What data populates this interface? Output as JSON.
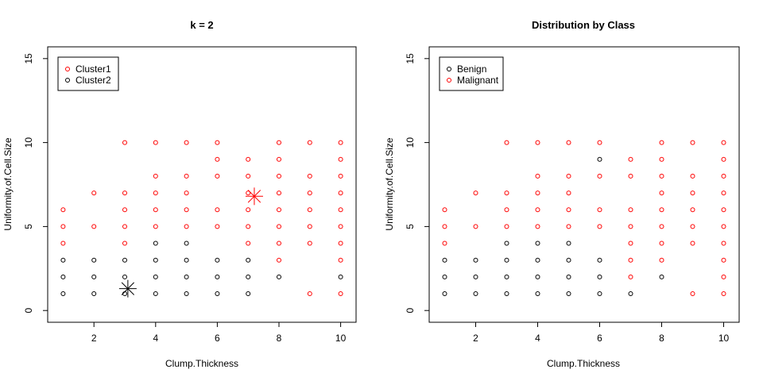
{
  "chart_data": [
    {
      "type": "scatter",
      "title": "k = 2",
      "xlabel": "Clump.Thickness",
      "ylabel": "Uniformity.of.Cell.Size",
      "xlim": [
        0.5,
        10.5
      ],
      "ylim": [
        -0.7,
        15.7
      ],
      "x_ticks": [
        2,
        4,
        6,
        8,
        10
      ],
      "y_ticks": [
        0,
        5,
        10,
        15
      ],
      "grid": false,
      "legend_position": "top-left",
      "series": [
        {
          "name": "Cluster1",
          "color": "#ff0000",
          "marker": "circle",
          "points": [
            [
              1,
              4
            ],
            [
              1,
              5
            ],
            [
              1,
              6
            ],
            [
              2,
              5
            ],
            [
              2,
              7
            ],
            [
              3,
              4
            ],
            [
              3,
              5
            ],
            [
              3,
              6
            ],
            [
              3,
              7
            ],
            [
              3,
              10
            ],
            [
              4,
              5
            ],
            [
              4,
              6
            ],
            [
              4,
              7
            ],
            [
              4,
              8
            ],
            [
              4,
              10
            ],
            [
              5,
              5
            ],
            [
              5,
              6
            ],
            [
              5,
              7
            ],
            [
              5,
              8
            ],
            [
              5,
              10
            ],
            [
              6,
              5
            ],
            [
              6,
              6
            ],
            [
              6,
              8
            ],
            [
              6,
              9
            ],
            [
              6,
              10
            ],
            [
              7,
              4
            ],
            [
              7,
              5
            ],
            [
              7,
              6
            ],
            [
              7,
              7
            ],
            [
              7,
              8
            ],
            [
              7,
              9
            ],
            [
              8,
              3
            ],
            [
              8,
              4
            ],
            [
              8,
              5
            ],
            [
              8,
              6
            ],
            [
              8,
              7
            ],
            [
              8,
              8
            ],
            [
              8,
              9
            ],
            [
              8,
              10
            ],
            [
              9,
              1
            ],
            [
              9,
              4
            ],
            [
              9,
              5
            ],
            [
              9,
              6
            ],
            [
              9,
              7
            ],
            [
              9,
              8
            ],
            [
              9,
              10
            ],
            [
              10,
              1
            ],
            [
              10,
              3
            ],
            [
              10,
              4
            ],
            [
              10,
              5
            ],
            [
              10,
              6
            ],
            [
              10,
              7
            ],
            [
              10,
              8
            ],
            [
              10,
              9
            ],
            [
              10,
              10
            ]
          ]
        },
        {
          "name": "Cluster2",
          "color": "#000000",
          "marker": "circle",
          "points": [
            [
              1,
              1
            ],
            [
              1,
              2
            ],
            [
              1,
              3
            ],
            [
              2,
              1
            ],
            [
              2,
              2
            ],
            [
              2,
              3
            ],
            [
              3,
              1
            ],
            [
              3,
              2
            ],
            [
              3,
              3
            ],
            [
              4,
              1
            ],
            [
              4,
              2
            ],
            [
              4,
              3
            ],
            [
              4,
              4
            ],
            [
              5,
              1
            ],
            [
              5,
              2
            ],
            [
              5,
              3
            ],
            [
              5,
              4
            ],
            [
              6,
              1
            ],
            [
              6,
              2
            ],
            [
              6,
              3
            ],
            [
              7,
              1
            ],
            [
              7,
              2
            ],
            [
              7,
              3
            ],
            [
              8,
              2
            ],
            [
              10,
              2
            ]
          ]
        }
      ],
      "centers": [
        {
          "color": "#ff0000",
          "x": 7.2,
          "y": 6.8,
          "marker": "asterisk"
        },
        {
          "color": "#000000",
          "x": 3.1,
          "y": 1.3,
          "marker": "asterisk"
        }
      ]
    },
    {
      "type": "scatter",
      "title": "Distribution by Class",
      "xlabel": "Clump.Thickness",
      "ylabel": "Uniformity.of.Cell.Size",
      "xlim": [
        0.5,
        10.5
      ],
      "ylim": [
        -0.7,
        15.7
      ],
      "x_ticks": [
        2,
        4,
        6,
        8,
        10
      ],
      "y_ticks": [
        0,
        5,
        10,
        15
      ],
      "grid": false,
      "legend_position": "top-left",
      "series": [
        {
          "name": "Benign",
          "color": "#000000",
          "marker": "circle",
          "points": [
            [
              1,
              1
            ],
            [
              1,
              2
            ],
            [
              1,
              3
            ],
            [
              2,
              1
            ],
            [
              2,
              2
            ],
            [
              2,
              3
            ],
            [
              3,
              1
            ],
            [
              3,
              2
            ],
            [
              3,
              3
            ],
            [
              3,
              4
            ],
            [
              4,
              1
            ],
            [
              4,
              2
            ],
            [
              4,
              3
            ],
            [
              4,
              4
            ],
            [
              5,
              1
            ],
            [
              5,
              2
            ],
            [
              5,
              3
            ],
            [
              5,
              4
            ],
            [
              6,
              1
            ],
            [
              6,
              2
            ],
            [
              6,
              3
            ],
            [
              6,
              9
            ],
            [
              7,
              1
            ],
            [
              8,
              2
            ]
          ]
        },
        {
          "name": "Malignant",
          "color": "#ff0000",
          "marker": "circle",
          "points": [
            [
              1,
              4
            ],
            [
              1,
              5
            ],
            [
              1,
              6
            ],
            [
              2,
              5
            ],
            [
              2,
              7
            ],
            [
              3,
              5
            ],
            [
              3,
              6
            ],
            [
              3,
              7
            ],
            [
              3,
              10
            ],
            [
              4,
              5
            ],
            [
              4,
              6
            ],
            [
              4,
              7
            ],
            [
              4,
              8
            ],
            [
              4,
              10
            ],
            [
              5,
              5
            ],
            [
              5,
              6
            ],
            [
              5,
              7
            ],
            [
              5,
              8
            ],
            [
              5,
              10
            ],
            [
              6,
              5
            ],
            [
              6,
              6
            ],
            [
              6,
              8
            ],
            [
              6,
              10
            ],
            [
              7,
              2
            ],
            [
              7,
              3
            ],
            [
              7,
              4
            ],
            [
              7,
              5
            ],
            [
              7,
              6
            ],
            [
              7,
              8
            ],
            [
              7,
              9
            ],
            [
              8,
              3
            ],
            [
              8,
              4
            ],
            [
              8,
              5
            ],
            [
              8,
              6
            ],
            [
              8,
              7
            ],
            [
              8,
              8
            ],
            [
              8,
              9
            ],
            [
              8,
              10
            ],
            [
              9,
              1
            ],
            [
              9,
              4
            ],
            [
              9,
              5
            ],
            [
              9,
              6
            ],
            [
              9,
              7
            ],
            [
              9,
              8
            ],
            [
              9,
              10
            ],
            [
              10,
              1
            ],
            [
              10,
              2
            ],
            [
              10,
              3
            ],
            [
              10,
              4
            ],
            [
              10,
              5
            ],
            [
              10,
              6
            ],
            [
              10,
              7
            ],
            [
              10,
              8
            ],
            [
              10,
              9
            ],
            [
              10,
              10
            ]
          ]
        }
      ],
      "centers": []
    }
  ]
}
